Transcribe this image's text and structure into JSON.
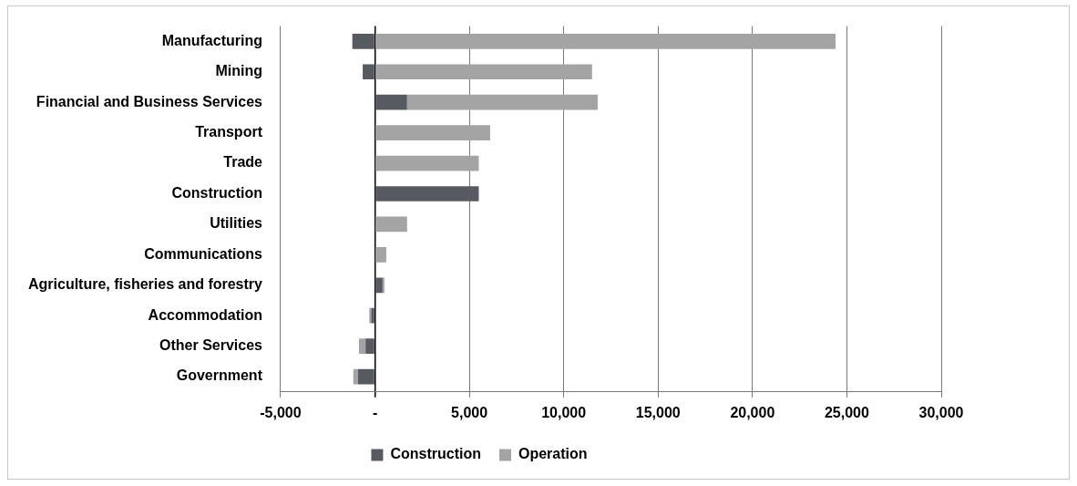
{
  "chart_data": {
    "type": "bar",
    "orientation": "horizontal",
    "stacked": true,
    "categories": [
      "Manufacturing",
      "Mining",
      "Financial and Business Services",
      "Transport",
      "Trade",
      "Construction",
      "Utilities",
      "Communications",
      "Agriculture, fisheries and forestry",
      "Accommodation",
      "Other Services",
      "Government"
    ],
    "series": [
      {
        "name": "Construction",
        "color": "#575b61",
        "values": [
          -1200,
          -650,
          1700,
          0,
          0,
          5500,
          0,
          0,
          400,
          -200,
          -500,
          -900
        ]
      },
      {
        "name": "Operation",
        "color": "#a4a4a4",
        "values": [
          24400,
          11500,
          10100,
          6100,
          5500,
          0,
          1700,
          600,
          100,
          -100,
          -350,
          -250
        ]
      }
    ],
    "xlim": [
      -5000,
      30000
    ],
    "xticks": [
      {
        "value": -5000,
        "label": "-5,000"
      },
      {
        "value": 0,
        "label": "-"
      },
      {
        "value": 5000,
        "label": "5,000"
      },
      {
        "value": 10000,
        "label": "10,000"
      },
      {
        "value": 15000,
        "label": "15,000"
      },
      {
        "value": 20000,
        "label": "20,000"
      },
      {
        "value": 25000,
        "label": "25,000"
      },
      {
        "value": 30000,
        "label": "30,000"
      }
    ],
    "grid": "x",
    "legend": "bottom"
  }
}
